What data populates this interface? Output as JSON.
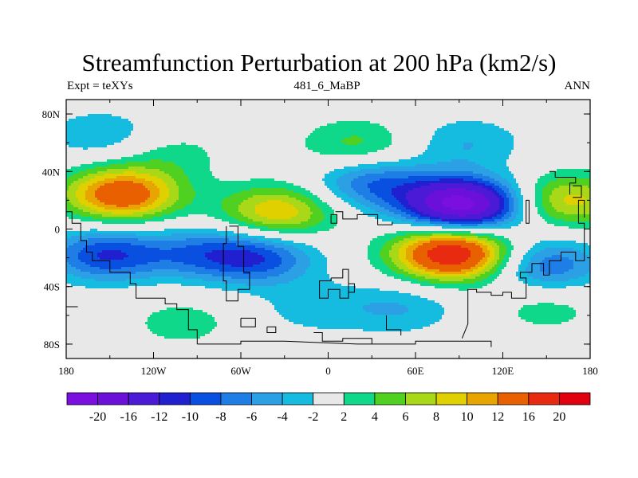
{
  "header": {
    "title": "Streamfunction Perturbation at 200 hPa (km2/s)",
    "left": "Expt = teXYs",
    "center": "481_6_MaBP",
    "right": "ANN"
  },
  "axes": {
    "x_ticks": [
      {
        "value": -180,
        "label": "180"
      },
      {
        "value": -120,
        "label": "120W"
      },
      {
        "value": -60,
        "label": "60W"
      },
      {
        "value": 0,
        "label": "0"
      },
      {
        "value": 60,
        "label": "60E"
      },
      {
        "value": 120,
        "label": "120E"
      },
      {
        "value": 180,
        "label": "180"
      }
    ],
    "y_ticks": [
      {
        "value": 80,
        "label": "80N"
      },
      {
        "value": 40,
        "label": "40N"
      },
      {
        "value": 0,
        "label": "0"
      },
      {
        "value": -40,
        "label": "40S"
      },
      {
        "value": -80,
        "label": "80S"
      }
    ],
    "xlim": [
      -180,
      180
    ],
    "ylim": [
      -90,
      90
    ]
  },
  "colorbar": {
    "levels": [
      "-20",
      "-16",
      "-12",
      "-10",
      "-8",
      "-6",
      "-4",
      "-2",
      "2",
      "4",
      "6",
      "8",
      "10",
      "12",
      "16",
      "20"
    ],
    "colors": [
      "#7a0fe0",
      "#6a10d8",
      "#4a1ad6",
      "#2020d0",
      "#0a50e0",
      "#1e7ee6",
      "#2ca0e4",
      "#16bce0",
      "#e8e8e8",
      "#10d88a",
      "#50d020",
      "#a8d818",
      "#e0d000",
      "#e8a400",
      "#e86000",
      "#e82a10",
      "#e00010"
    ]
  },
  "chart_data": {
    "type": "heatmap",
    "title": "Streamfunction Perturbation at 200 hPa (km2/s)",
    "xlim": [
      -180,
      180
    ],
    "ylim": [
      -90,
      90
    ],
    "blobs": [
      {
        "lon": -142,
        "lat": 24,
        "value": 15
      },
      {
        "lon": -153,
        "lat": -18,
        "value": -10
      },
      {
        "lon": -90,
        "lat": -17,
        "value": -6
      },
      {
        "lon": -48,
        "lat": -20,
        "value": -9
      },
      {
        "lon": -35,
        "lat": 12,
        "value": 10
      },
      {
        "lon": 20,
        "lat": 58,
        "value": 5
      },
      {
        "lon": -110,
        "lat": 52,
        "value": 3
      },
      {
        "lon": -155,
        "lat": 65,
        "value": -4
      },
      {
        "lon": 92,
        "lat": 17,
        "value": -22
      },
      {
        "lon": 30,
        "lat": 32,
        "value": -8
      },
      {
        "lon": 85,
        "lat": -17,
        "value": 20
      },
      {
        "lon": 165,
        "lat": 20,
        "value": 9
      },
      {
        "lon": 150,
        "lat": -25,
        "value": -8
      },
      {
        "lon": -100,
        "lat": -65,
        "value": 3
      },
      {
        "lon": 50,
        "lat": -55,
        "value": -4
      },
      {
        "lon": 95,
        "lat": 60,
        "value": -4
      },
      {
        "lon": 150,
        "lat": -55,
        "value": 3
      },
      {
        "lon": -10,
        "lat": -55,
        "value": -3
      }
    ]
  }
}
